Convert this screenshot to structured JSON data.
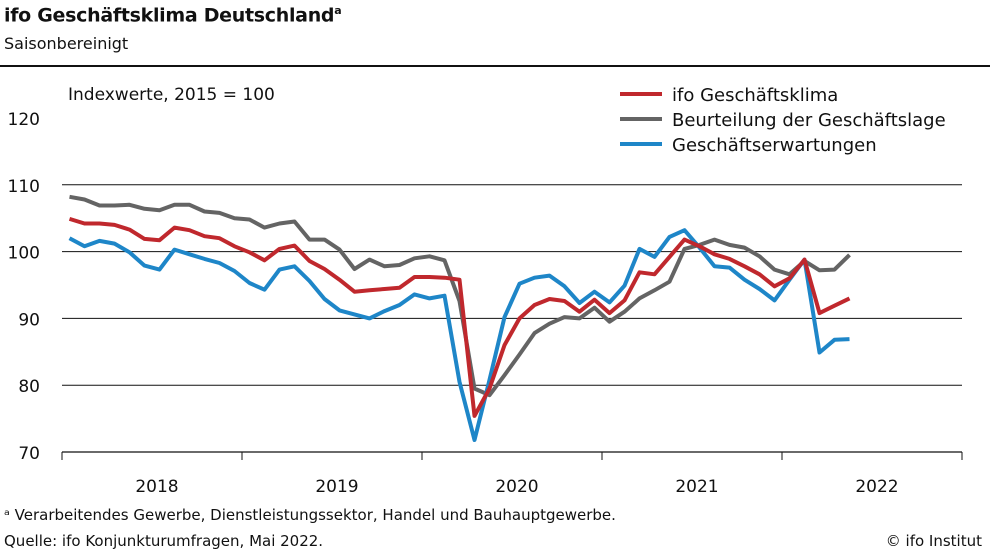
{
  "title": "ifo Geschäftsklima Deutschland",
  "title_sup": "a",
  "subtitle": "Saisonbereinigt",
  "footnote": "ᵃ Verarbeitendes Gewerbe, Dienstleistungssektor, Handel und Bauhauptgewerbe.",
  "source": "Quelle: ifo Konjunkturumfragen, Mai 2022.",
  "copyright": "© ifo Institut",
  "chart_data": {
    "type": "line",
    "unit_label": "Indexwerte, 2015 = 100",
    "x_start": "2018-01",
    "x_end": "2022-05",
    "x_frequency": "monthly",
    "x_tick_labels": [
      "2018",
      "2019",
      "2020",
      "2021",
      "2022"
    ],
    "ylim": [
      70,
      120
    ],
    "y_ticks": [
      70,
      80,
      90,
      100,
      110,
      120
    ],
    "grid": "horizontal",
    "legend_position": "top-right",
    "series": [
      {
        "name": "ifo Geschäftsklima",
        "color": "#c0282d",
        "values": [
          104.9,
          104.2,
          104.2,
          104.0,
          103.3,
          101.9,
          101.7,
          103.6,
          103.2,
          102.3,
          102.0,
          100.8,
          99.9,
          98.7,
          100.4,
          100.9,
          98.6,
          97.4,
          95.8,
          94.0,
          94.2,
          94.4,
          94.6,
          96.2,
          96.2,
          96.1,
          95.8,
          75.4,
          79.5,
          86.0,
          90.0,
          92.0,
          92.9,
          92.6,
          91.0,
          92.8,
          90.8,
          92.7,
          96.9,
          96.6,
          99.2,
          101.8,
          100.8,
          99.6,
          98.9,
          97.8,
          96.6,
          94.8,
          96.0,
          98.8,
          90.8,
          91.9,
          93.0
        ]
      },
      {
        "name": "Beurteilung der Geschäftslage",
        "color": "#646464",
        "values": [
          108.2,
          107.8,
          106.9,
          106.9,
          107.0,
          106.4,
          106.2,
          107.0,
          107.0,
          106.0,
          105.8,
          105.0,
          104.8,
          103.6,
          104.2,
          104.5,
          101.8,
          101.8,
          100.3,
          97.4,
          98.8,
          97.8,
          98.0,
          99.0,
          99.3,
          98.7,
          92.6,
          79.5,
          78.5,
          81.5,
          84.6,
          87.8,
          89.2,
          90.2,
          90.0,
          91.6,
          89.5,
          91.0,
          93.0,
          94.2,
          95.5,
          100.4,
          101.0,
          101.8,
          101.0,
          100.6,
          99.3,
          97.3,
          96.6,
          98.6,
          97.2,
          97.3,
          99.5
        ]
      },
      {
        "name": "Geschäftserwartungen",
        "color": "#1e86c8",
        "values": [
          102.0,
          100.8,
          101.6,
          101.2,
          99.9,
          97.9,
          97.3,
          100.3,
          99.6,
          98.9,
          98.3,
          97.1,
          95.3,
          94.3,
          97.3,
          97.8,
          95.6,
          92.9,
          91.2,
          90.6,
          90.0,
          91.1,
          92.0,
          93.6,
          93.0,
          93.4,
          80.5,
          71.8,
          80.8,
          90.2,
          95.2,
          96.1,
          96.4,
          94.8,
          92.3,
          94.0,
          92.4,
          94.9,
          100.4,
          99.2,
          102.2,
          103.2,
          100.6,
          97.8,
          97.6,
          95.8,
          94.4,
          92.7,
          95.8,
          98.8,
          84.9,
          86.8,
          86.9
        ]
      }
    ]
  }
}
